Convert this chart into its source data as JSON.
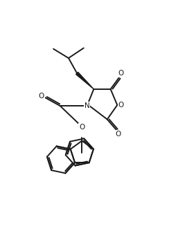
{
  "bg_color": "#ffffff",
  "line_color": "#1a1a1a",
  "line_width": 1.4,
  "fig_width": 2.44,
  "fig_height": 3.5,
  "dpi": 100,
  "xlim": [
    0,
    10
  ],
  "ylim": [
    0,
    14.3
  ]
}
